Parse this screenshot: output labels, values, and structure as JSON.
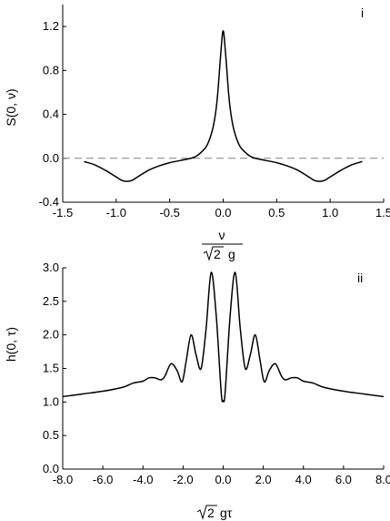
{
  "chart_data": [
    {
      "type": "line",
      "panel_label": "i",
      "ylabel": "S(0, ν)",
      "xlabel_top": "ν",
      "xlabel_bottom_sqrt": "2",
      "xlabel_bottom_rest": "g",
      "xlim": [
        -1.5,
        1.5
      ],
      "ylim": [
        -0.4,
        1.4
      ],
      "xticks": [
        -1.5,
        -1.0,
        -0.5,
        0.0,
        0.5,
        1.0,
        1.5
      ],
      "xtick_labels": [
        "-1.5",
        "-1.0",
        "-0.5",
        "0.0",
        "0.5",
        "1.0",
        "1.5"
      ],
      "yticks": [
        -0.4,
        0.0,
        0.4,
        0.8,
        1.2
      ],
      "ytick_labels": [
        "-0.4",
        "0.0",
        "0.4",
        "0.8",
        "1.2"
      ],
      "reference_line_y": 0.0,
      "series": [
        {
          "x": [
            -1.3,
            -1.2,
            -1.1,
            -1.0,
            -0.95,
            -0.9,
            -0.85,
            -0.8,
            -0.7,
            -0.6,
            -0.5,
            -0.4,
            -0.3,
            -0.25,
            -0.2,
            -0.15,
            -0.1,
            -0.07,
            -0.05,
            -0.03,
            -0.01,
            0.0,
            0.01,
            0.03,
            0.05,
            0.07,
            0.1,
            0.15,
            0.2,
            0.25,
            0.3,
            0.4,
            0.5,
            0.6,
            0.7,
            0.8,
            0.85,
            0.9,
            0.95,
            1.0,
            1.1,
            1.2,
            1.3
          ],
          "y": [
            -0.03,
            -0.06,
            -0.11,
            -0.17,
            -0.2,
            -0.21,
            -0.2,
            -0.17,
            -0.11,
            -0.07,
            -0.04,
            -0.02,
            0.0,
            0.02,
            0.06,
            0.12,
            0.26,
            0.42,
            0.6,
            0.86,
            1.1,
            1.16,
            1.1,
            0.86,
            0.6,
            0.42,
            0.26,
            0.12,
            0.06,
            0.02,
            0.0,
            -0.02,
            -0.04,
            -0.07,
            -0.11,
            -0.17,
            -0.2,
            -0.21,
            -0.2,
            -0.17,
            -0.11,
            -0.06,
            -0.03
          ]
        }
      ]
    },
    {
      "type": "line",
      "panel_label": "ii",
      "ylabel": "h(0, τ)",
      "xlabel_sqrt": "2",
      "xlabel_rest": "gτ",
      "xlim": [
        -8.0,
        8.0
      ],
      "ylim": [
        0.0,
        3.0
      ],
      "xticks": [
        -8,
        -6,
        -4,
        -2,
        0,
        2,
        4,
        6,
        8
      ],
      "xtick_labels": [
        "-8.0",
        "-6.0",
        "-4.0",
        "-2.0",
        "0.0",
        "2.0",
        "4.0",
        "6.0",
        "8.0"
      ],
      "yticks": [
        0.0,
        0.5,
        1.0,
        1.5,
        2.0,
        2.5,
        3.0
      ],
      "ytick_labels": [
        "0.0",
        "0.5",
        "1.0",
        "1.5",
        "2.0",
        "2.5",
        "3.0"
      ],
      "series": [
        {
          "x": [
            -8.0,
            -7.0,
            -6.0,
            -5.0,
            -4.5,
            -4.0,
            -3.7,
            -3.4,
            -3.1,
            -2.9,
            -2.6,
            -2.3,
            -2.05,
            -1.85,
            -1.6,
            -1.35,
            -1.1,
            -0.85,
            -0.6,
            -0.35,
            -0.1,
            0.0,
            0.1,
            0.35,
            0.6,
            0.85,
            1.1,
            1.35,
            1.6,
            1.85,
            2.05,
            2.3,
            2.6,
            2.9,
            3.1,
            3.4,
            3.7,
            4.0,
            4.5,
            5.0,
            6.0,
            7.0,
            8.0
          ],
          "y": [
            1.08,
            1.12,
            1.16,
            1.22,
            1.28,
            1.31,
            1.36,
            1.36,
            1.33,
            1.39,
            1.57,
            1.47,
            1.3,
            1.6,
            2.0,
            1.7,
            1.5,
            2.1,
            2.93,
            2.3,
            1.15,
            1.02,
            1.15,
            2.3,
            2.93,
            2.1,
            1.5,
            1.7,
            2.0,
            1.6,
            1.3,
            1.47,
            1.57,
            1.39,
            1.33,
            1.36,
            1.36,
            1.31,
            1.28,
            1.22,
            1.16,
            1.12,
            1.08
          ]
        }
      ]
    }
  ]
}
